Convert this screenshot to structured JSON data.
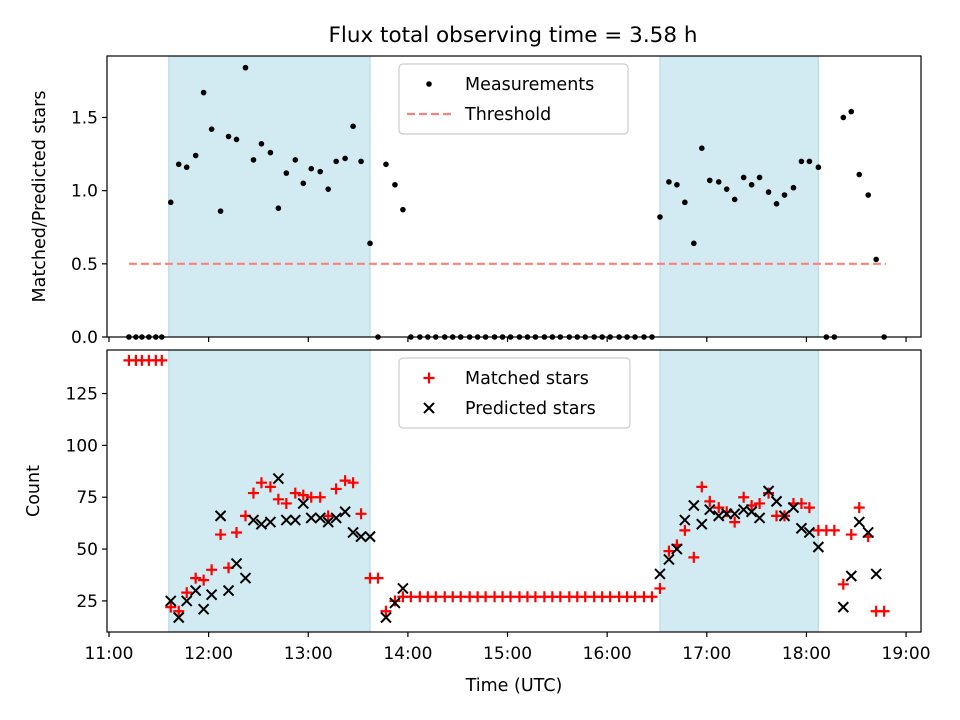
{
  "title": "Flux total observing time = 3.58 h",
  "colors": {
    "shade": "#add8e6",
    "threshold": "#ff7f7f",
    "measurements": "#000000",
    "matched": "#ff0000",
    "predicted": "#000000"
  },
  "chart_data": [
    {
      "type": "scatter",
      "panel": "top",
      "ylabel": "Matched/Predicted stars",
      "xlim": [
        10.98,
        19.15
      ],
      "ylim": [
        0,
        1.92
      ],
      "yticks": [
        0.0,
        0.5,
        1.0,
        1.5
      ],
      "ytick_labels": [
        "0.0",
        "0.5",
        "1.0",
        "1.5"
      ],
      "legend": {
        "position": "upper center",
        "entries": [
          "Measurements",
          "Threshold"
        ]
      },
      "shaded_spans": [
        [
          11.6,
          13.62
        ],
        [
          16.53,
          18.12
        ]
      ],
      "threshold": {
        "name": "Threshold",
        "value": 0.5,
        "x_range": [
          11.2,
          18.8
        ]
      },
      "series": [
        {
          "name": "Measurements",
          "points": [
            [
              11.2,
              0
            ],
            [
              11.27,
              0
            ],
            [
              11.33,
              0
            ],
            [
              11.4,
              0
            ],
            [
              11.47,
              0
            ],
            [
              11.53,
              0
            ],
            [
              11.62,
              0.92
            ],
            [
              11.7,
              1.18
            ],
            [
              11.78,
              1.16
            ],
            [
              11.87,
              1.24
            ],
            [
              11.95,
              1.67
            ],
            [
              12.03,
              1.42
            ],
            [
              12.12,
              0.86
            ],
            [
              12.2,
              1.37
            ],
            [
              12.28,
              1.35
            ],
            [
              12.37,
              1.84
            ],
            [
              12.45,
              1.21
            ],
            [
              12.53,
              1.32
            ],
            [
              12.62,
              1.26
            ],
            [
              12.7,
              0.88
            ],
            [
              12.78,
              1.12
            ],
            [
              12.87,
              1.21
            ],
            [
              12.95,
              1.05
            ],
            [
              13.03,
              1.15
            ],
            [
              13.12,
              1.13
            ],
            [
              13.2,
              1.01
            ],
            [
              13.28,
              1.2
            ],
            [
              13.37,
              1.22
            ],
            [
              13.45,
              1.44
            ],
            [
              13.53,
              1.2
            ],
            [
              13.62,
              0.64
            ],
            [
              13.7,
              0
            ],
            [
              13.78,
              1.18
            ],
            [
              13.87,
              1.04
            ],
            [
              13.95,
              0.87
            ],
            [
              14.03,
              0
            ],
            [
              14.12,
              0
            ],
            [
              14.2,
              0
            ],
            [
              14.28,
              0
            ],
            [
              14.37,
              0
            ],
            [
              14.45,
              0
            ],
            [
              14.53,
              0
            ],
            [
              14.62,
              0
            ],
            [
              14.7,
              0
            ],
            [
              14.78,
              0
            ],
            [
              14.87,
              0
            ],
            [
              14.95,
              0
            ],
            [
              15.03,
              0
            ],
            [
              15.12,
              0
            ],
            [
              15.2,
              0
            ],
            [
              15.28,
              0
            ],
            [
              15.37,
              0
            ],
            [
              15.45,
              0
            ],
            [
              15.53,
              0
            ],
            [
              15.62,
              0
            ],
            [
              15.7,
              0
            ],
            [
              15.78,
              0
            ],
            [
              15.87,
              0
            ],
            [
              15.95,
              0
            ],
            [
              16.03,
              0
            ],
            [
              16.12,
              0
            ],
            [
              16.2,
              0
            ],
            [
              16.28,
              0
            ],
            [
              16.37,
              0
            ],
            [
              16.45,
              0
            ],
            [
              16.53,
              0.82
            ],
            [
              16.62,
              1.06
            ],
            [
              16.7,
              1.04
            ],
            [
              16.78,
              0.92
            ],
            [
              16.87,
              0.64
            ],
            [
              16.95,
              1.29
            ],
            [
              17.03,
              1.07
            ],
            [
              17.12,
              1.06
            ],
            [
              17.2,
              1.01
            ],
            [
              17.28,
              0.94
            ],
            [
              17.37,
              1.09
            ],
            [
              17.45,
              1.04
            ],
            [
              17.53,
              1.09
            ],
            [
              17.62,
              0.99
            ],
            [
              17.7,
              0.91
            ],
            [
              17.78,
              0.97
            ],
            [
              17.87,
              1.02
            ],
            [
              17.95,
              1.2
            ],
            [
              18.03,
              1.2
            ],
            [
              18.12,
              1.16
            ],
            [
              18.2,
              0
            ],
            [
              18.28,
              0
            ],
            [
              18.37,
              1.5
            ],
            [
              18.45,
              1.54
            ],
            [
              18.53,
              1.11
            ],
            [
              18.62,
              0.97
            ],
            [
              18.7,
              0.53
            ],
            [
              18.78,
              0
            ]
          ]
        }
      ]
    },
    {
      "type": "scatter",
      "panel": "bottom",
      "xlabel": "Time (UTC)",
      "ylabel": "Count",
      "xlim": [
        10.98,
        19.15
      ],
      "ylim": [
        10,
        146
      ],
      "xticks": [
        11,
        12,
        13,
        14,
        15,
        16,
        17,
        18,
        19
      ],
      "xtick_labels": [
        "11:00",
        "12:00",
        "13:00",
        "14:00",
        "15:00",
        "16:00",
        "17:00",
        "18:00",
        "19:00"
      ],
      "yticks": [
        25,
        50,
        75,
        100,
        125
      ],
      "ytick_labels": [
        "25",
        "50",
        "75",
        "100",
        "125"
      ],
      "legend": {
        "position": "upper center",
        "entries": [
          "Matched stars",
          "Predicted stars"
        ]
      },
      "shaded_spans": [
        [
          11.6,
          13.62
        ],
        [
          16.53,
          18.12
        ]
      ],
      "series": [
        {
          "name": "Matched stars",
          "marker": "+",
          "points": [
            [
              11.2,
              141
            ],
            [
              11.27,
              141
            ],
            [
              11.33,
              141
            ],
            [
              11.4,
              141
            ],
            [
              11.47,
              141
            ],
            [
              11.53,
              141
            ],
            [
              11.62,
              22
            ],
            [
              11.7,
              20
            ],
            [
              11.78,
              29
            ],
            [
              11.87,
              36
            ],
            [
              11.95,
              35
            ],
            [
              12.03,
              40
            ],
            [
              12.12,
              57
            ],
            [
              12.2,
              41
            ],
            [
              12.28,
              58
            ],
            [
              12.37,
              66
            ],
            [
              12.45,
              77
            ],
            [
              12.53,
              82
            ],
            [
              12.62,
              80
            ],
            [
              12.7,
              74
            ],
            [
              12.78,
              72
            ],
            [
              12.87,
              77
            ],
            [
              12.95,
              76
            ],
            [
              13.03,
              75
            ],
            [
              13.12,
              75
            ],
            [
              13.2,
              66
            ],
            [
              13.28,
              79
            ],
            [
              13.37,
              83
            ],
            [
              13.45,
              82
            ],
            [
              13.53,
              67
            ],
            [
              13.62,
              36
            ],
            [
              13.7,
              36
            ],
            [
              13.78,
              20
            ],
            [
              13.87,
              25
            ],
            [
              13.95,
              27
            ],
            [
              14.03,
              27
            ],
            [
              14.12,
              27
            ],
            [
              14.2,
              27
            ],
            [
              14.28,
              27
            ],
            [
              14.37,
              27
            ],
            [
              14.45,
              27
            ],
            [
              14.53,
              27
            ],
            [
              14.62,
              27
            ],
            [
              14.7,
              27
            ],
            [
              14.78,
              27
            ],
            [
              14.87,
              27
            ],
            [
              14.95,
              27
            ],
            [
              15.03,
              27
            ],
            [
              15.12,
              27
            ],
            [
              15.2,
              27
            ],
            [
              15.28,
              27
            ],
            [
              15.37,
              27
            ],
            [
              15.45,
              27
            ],
            [
              15.53,
              27
            ],
            [
              15.62,
              27
            ],
            [
              15.7,
              27
            ],
            [
              15.78,
              27
            ],
            [
              15.87,
              27
            ],
            [
              15.95,
              27
            ],
            [
              16.03,
              27
            ],
            [
              16.12,
              27
            ],
            [
              16.2,
              27
            ],
            [
              16.28,
              27
            ],
            [
              16.37,
              27
            ],
            [
              16.45,
              27
            ],
            [
              16.53,
              31
            ],
            [
              16.62,
              49
            ],
            [
              16.7,
              52
            ],
            [
              16.78,
              59
            ],
            [
              16.87,
              46
            ],
            [
              16.95,
              80
            ],
            [
              17.03,
              73
            ],
            [
              17.12,
              70
            ],
            [
              17.2,
              68
            ],
            [
              17.28,
              63
            ],
            [
              17.37,
              75
            ],
            [
              17.45,
              71
            ],
            [
              17.53,
              72
            ],
            [
              17.62,
              77
            ],
            [
              17.7,
              66
            ],
            [
              17.78,
              66
            ],
            [
              17.87,
              72
            ],
            [
              17.95,
              72
            ],
            [
              18.03,
              70
            ],
            [
              18.12,
              59
            ],
            [
              18.2,
              59
            ],
            [
              18.28,
              59
            ],
            [
              18.37,
              33
            ],
            [
              18.45,
              57
            ],
            [
              18.53,
              70
            ],
            [
              18.62,
              56
            ],
            [
              18.7,
              20
            ],
            [
              18.78,
              20
            ]
          ]
        },
        {
          "name": "Predicted stars",
          "marker": "x",
          "points": [
            [
              11.62,
              25
            ],
            [
              11.7,
              17
            ],
            [
              11.78,
              25
            ],
            [
              11.87,
              30
            ],
            [
              11.95,
              21
            ],
            [
              12.03,
              28
            ],
            [
              12.12,
              66
            ],
            [
              12.2,
              30
            ],
            [
              12.28,
              43
            ],
            [
              12.37,
              36
            ],
            [
              12.45,
              64
            ],
            [
              12.53,
              62
            ],
            [
              12.62,
              63
            ],
            [
              12.7,
              84
            ],
            [
              12.78,
              64
            ],
            [
              12.87,
              64
            ],
            [
              12.95,
              72
            ],
            [
              13.03,
              65
            ],
            [
              13.12,
              65
            ],
            [
              13.2,
              63
            ],
            [
              13.28,
              65
            ],
            [
              13.37,
              68
            ],
            [
              13.45,
              58
            ],
            [
              13.53,
              56
            ],
            [
              13.62,
              56
            ],
            [
              13.78,
              17
            ],
            [
              13.87,
              24
            ],
            [
              13.95,
              31
            ],
            [
              16.53,
              38
            ],
            [
              16.62,
              45
            ],
            [
              16.7,
              50
            ],
            [
              16.78,
              64
            ],
            [
              16.87,
              71
            ],
            [
              16.95,
              62
            ],
            [
              17.03,
              69
            ],
            [
              17.12,
              66
            ],
            [
              17.2,
              67
            ],
            [
              17.28,
              67
            ],
            [
              17.37,
              69
            ],
            [
              17.45,
              68
            ],
            [
              17.53,
              65
            ],
            [
              17.62,
              78
            ],
            [
              17.7,
              73
            ],
            [
              17.78,
              66
            ],
            [
              17.87,
              70
            ],
            [
              17.95,
              60
            ],
            [
              18.03,
              58
            ],
            [
              18.12,
              51
            ],
            [
              18.37,
              22
            ],
            [
              18.45,
              37
            ],
            [
              18.53,
              63
            ],
            [
              18.62,
              58
            ],
            [
              18.7,
              38
            ]
          ]
        }
      ]
    }
  ]
}
